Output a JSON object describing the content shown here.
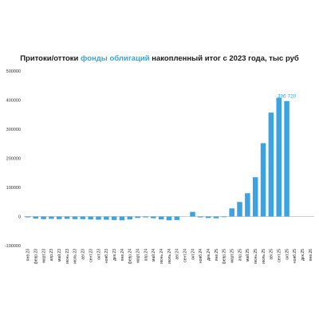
{
  "chart_data": {
    "type": "bar",
    "title_parts": {
      "before": "Притоки/оттоки ",
      "highlight": "фонды облигаций",
      "after": " накопленный итог с 2023 года, тыс руб"
    },
    "categories": [
      "янв.23",
      "февр.23",
      "март.23",
      "апр.23",
      "май.23",
      "июнь.23",
      "июль.23",
      "авг.23",
      "сент.23",
      "окт.23",
      "нояб.23",
      "дек.23",
      "янв.24",
      "февр.24",
      "март.24",
      "апр.24",
      "май.24",
      "июнь.24",
      "июль.24",
      "авг.24",
      "сент.24",
      "окт.24",
      "нояб.24",
      "дек.24",
      "янв.25",
      "февр.25",
      "март.25",
      "апр.25",
      "май.25",
      "июнь.25",
      "июль.25",
      "авг.25",
      "сент.25",
      "окт.25",
      "нояб.25",
      "дек.25",
      "янв.26"
    ],
    "values": [
      -3000,
      -7000,
      -9000,
      -8000,
      -9000,
      -8000,
      -9000,
      -9000,
      -10000,
      -11000,
      -11000,
      -12000,
      -13000,
      -10000,
      -5000,
      -3000,
      -6000,
      -10000,
      -13000,
      -12000,
      null,
      16000,
      -3000,
      -5000,
      -6000,
      -1000,
      28000,
      50000,
      80000,
      135000,
      252000,
      357000,
      408000,
      396720,
      null,
      null,
      null
    ],
    "data_labels": [
      {
        "category": "окт.25",
        "text": "396 720"
      }
    ],
    "ylim": [
      -100000,
      500000
    ],
    "yticks": [
      -100000,
      0,
      100000,
      200000,
      300000,
      400000,
      500000
    ],
    "ytick_labels": [
      "-100000",
      "0",
      "100000",
      "200000",
      "300000",
      "400000",
      "500000"
    ],
    "bar_color": "#3ba3e0",
    "label_color": "#3ba3e0",
    "grid": false,
    "legend": "none"
  }
}
